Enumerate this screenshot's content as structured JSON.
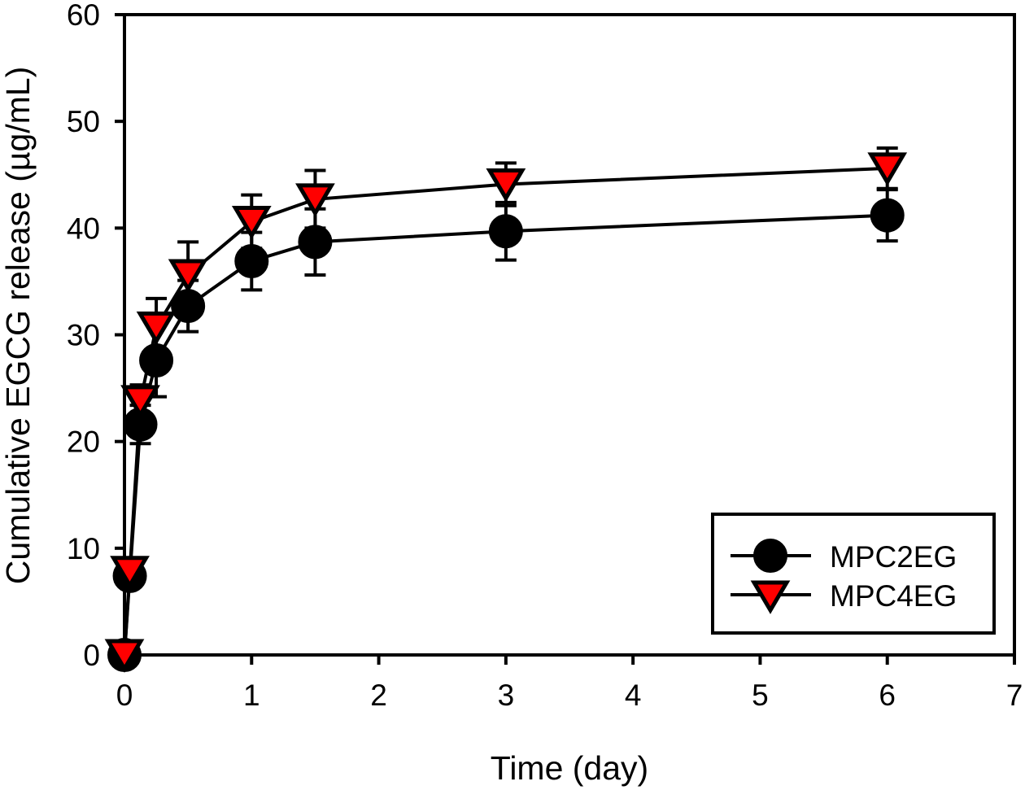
{
  "chart_data": {
    "type": "line",
    "title": "",
    "xlabel": "Time (day)",
    "ylabel": "Cumulative EGCG release (µg/mL)",
    "xlim": [
      0,
      7
    ],
    "ylim": [
      0,
      60
    ],
    "xticks": [
      0,
      1,
      2,
      3,
      4,
      5,
      6,
      7
    ],
    "yticks": [
      0,
      10,
      20,
      30,
      40,
      50,
      60
    ],
    "xtick_labels": [
      "0",
      "1",
      "2",
      "3",
      "4",
      "5",
      "6",
      "7"
    ],
    "ytick_labels": [
      "0",
      "10",
      "20",
      "30",
      "40",
      "50",
      "60"
    ],
    "grid": false,
    "legend_position": "bottom-right",
    "x": [
      0,
      0.042,
      0.125,
      0.25,
      0.5,
      1,
      1.5,
      3,
      6
    ],
    "series": [
      {
        "name": "MPC2EG",
        "marker": "circle",
        "color": "#000000",
        "values": [
          0,
          7.4,
          21.6,
          27.6,
          32.7,
          36.9,
          38.7,
          39.7,
          41.2
        ],
        "error": [
          0,
          0.6,
          1.8,
          3.4,
          2.4,
          2.7,
          3.1,
          2.7,
          2.4
        ]
      },
      {
        "name": "MPC4EG",
        "marker": "triangle-down",
        "color": "#ff0000",
        "values": [
          0,
          7.8,
          23.8,
          30.7,
          35.6,
          40.6,
          42.7,
          44.1,
          45.6
        ],
        "error": [
          0,
          0.6,
          1.5,
          2.7,
          3.1,
          2.5,
          2.7,
          2.0,
          1.9
        ]
      }
    ]
  }
}
